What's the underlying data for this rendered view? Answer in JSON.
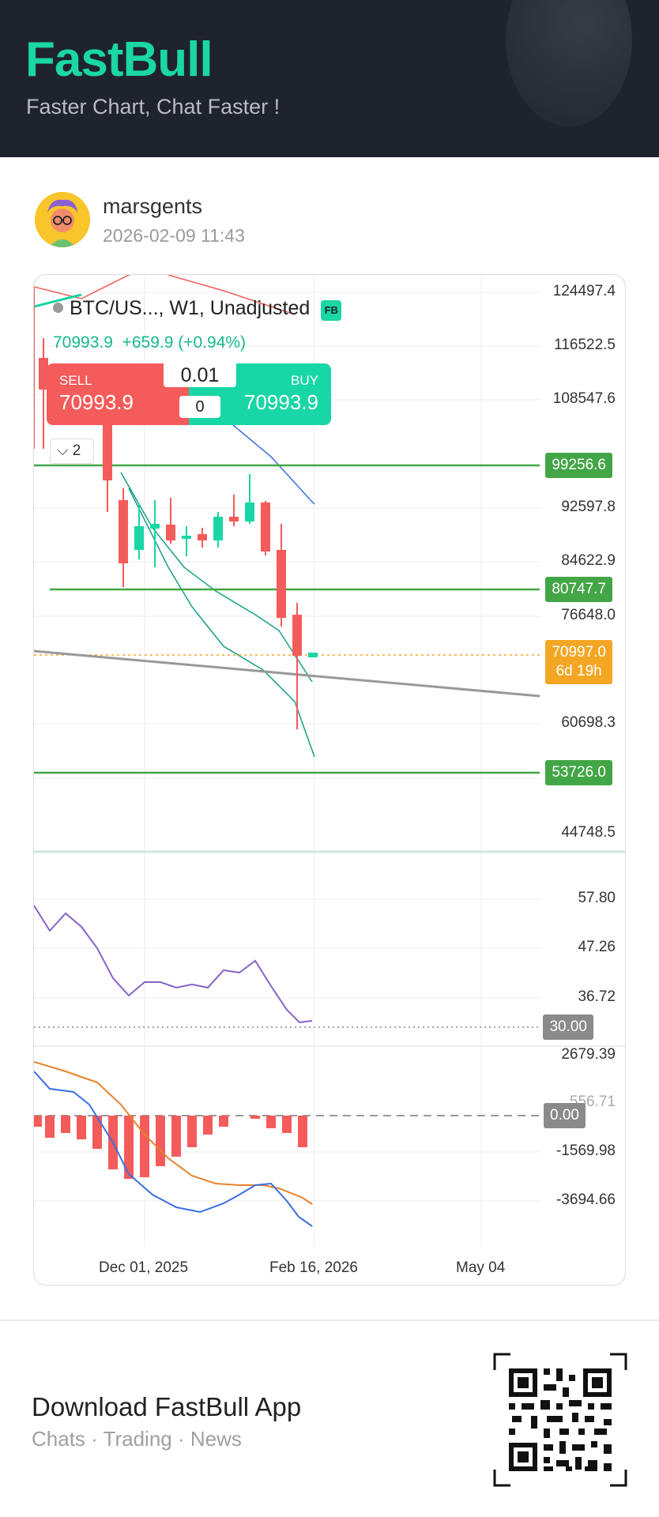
{
  "header": {
    "logo": "FastBull",
    "tagline": "Faster Chart, Chat Faster !"
  },
  "post": {
    "username": "marsgents",
    "timestamp": "2026-02-09 11:43"
  },
  "chart": {
    "symbol": "BTC/US...",
    "symbol_suffix": ", W1, Unadjusted",
    "badge": "FB",
    "price": "70993.9",
    "change": "+659.9 (+0.94%)",
    "trade": {
      "sell_label": "SELL",
      "sell_price": "70993.9",
      "buy_label": "BUY",
      "buy_price": "70993.9",
      "quantity": "0.01",
      "spread": "0"
    },
    "indicator_toggle": "2",
    "price_axis": [
      "124497.4",
      "116522.5",
      "108547.6",
      "92597.8",
      "84622.9",
      "76648.0",
      "60698.3",
      "44748.5"
    ],
    "level_tags": [
      "99256.6",
      "80747.7",
      "53726.0"
    ],
    "current_tag": {
      "price": "70997.0",
      "countdown": "6d 19h"
    },
    "rsi_axis": [
      "57.80",
      "47.26",
      "36.72"
    ],
    "rsi_tag": "30.00",
    "macd_axis": [
      "2679.39",
      "556.71",
      "-1569.98",
      "-3694.66"
    ],
    "macd_tag": "0.00",
    "x_axis": [
      "Dec 01, 2025",
      "Feb 16, 2026",
      "May 04"
    ],
    "colors": {
      "up": "#18d6a5",
      "down": "#f45b5b",
      "level": "#43a646",
      "current": "#f3a624"
    }
  },
  "chart_data": {
    "type": "candlestick",
    "timeframe": "W1",
    "x_ticks": [
      "Dec 01, 2025",
      "Feb 16, 2026",
      "May 04"
    ],
    "horizontal_levels": [
      99256.6,
      80747.7,
      53726.0
    ],
    "current_price": 70997.0,
    "rsi_reference": 30.0,
    "macd_reference": 0.0
  },
  "footer": {
    "title": "Download FastBull App",
    "subtitle": "Chats · Trading · News"
  }
}
